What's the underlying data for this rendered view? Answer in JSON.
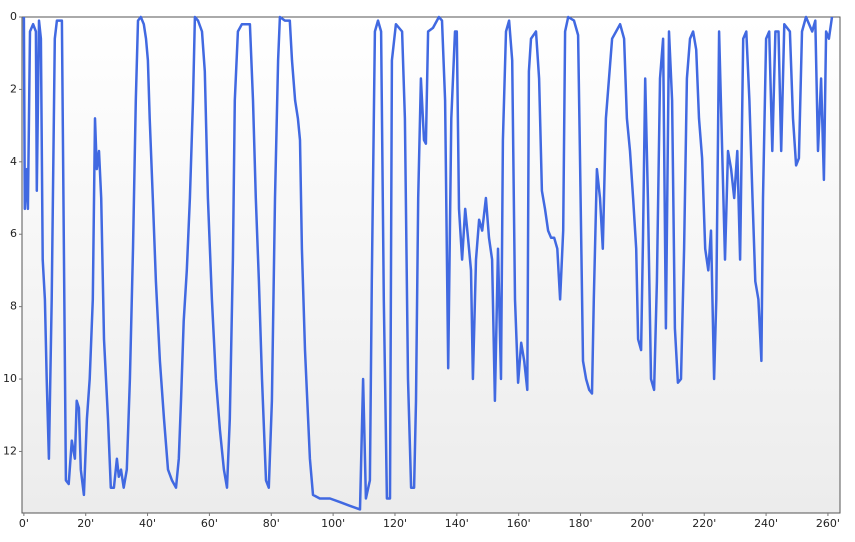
{
  "chart_data": {
    "type": "line",
    "color": "#4169e1",
    "x": [
      0,
      0.3,
      1,
      1.3,
      2,
      3,
      3.9,
      4.2,
      4.9,
      5.5,
      6.1,
      6.8,
      7.4,
      8.1,
      9,
      10,
      10.7,
      12.3,
      13.6,
      14.5,
      15.5,
      16.5,
      17.1,
      17.8,
      18.4,
      19.4,
      20.4,
      21.3,
      22.3,
      23,
      23.6,
      24.3,
      25,
      25.9,
      27.2,
      28.1,
      29.1,
      30.1,
      30.7,
      31.4,
      32.3,
      33.3,
      34.3,
      35.3,
      36.2,
      36.9,
      37.8,
      38.8,
      39.5,
      40.1,
      40.7,
      41.7,
      42.7,
      44,
      45.3,
      46.6,
      47.9,
      49.2,
      50.1,
      50.8,
      51.7,
      52.7,
      53.7,
      54.7,
      55.3,
      56.3,
      57.6,
      58.5,
      59.5,
      60.8,
      62.1,
      63.4,
      64.7,
      65.7,
      66.6,
      67.6,
      68.2,
      69.2,
      70.5,
      73.1,
      74.1,
      75,
      76,
      77,
      78.3,
      79.2,
      80.2,
      81.2,
      82.2,
      82.8,
      84.4,
      86,
      86.7,
      87.7,
      88.6,
      89.3,
      89.9,
      90.9,
      92.5,
      93.5,
      95.7,
      99,
      102.2,
      105.4,
      108.7,
      109.7,
      110.6,
      111.9,
      112.5,
      113.5,
      114.5,
      115.5,
      116.4,
      117.4,
      118.4,
      119,
      120.3,
      122.3,
      123.2,
      124.2,
      125.2,
      126.2,
      126.8,
      127.5,
      128.4,
      129.4,
      130,
      130.7,
      132.3,
      134.2,
      135.2,
      136.2,
      137.2,
      138.2,
      139.4,
      140,
      140.7,
      141.7,
      142.7,
      143.6,
      144.6,
      145.2,
      146.2,
      147.2,
      148.2,
      149.4,
      150.4,
      151.4,
      152.3,
      153.3,
      154.3,
      154.9,
      155.9,
      156.9,
      157.9,
      158.8,
      159.8,
      160.8,
      161.8,
      162.8,
      163.3,
      164,
      165.6,
      166.6,
      167.5,
      168.5,
      169.5,
      170.5,
      171.5,
      172.5,
      173.4,
      174.4,
      175,
      176,
      177.9,
      179.2,
      179.8,
      180.8,
      181.8,
      182.8,
      183.7,
      184.3,
      185.3,
      186.3,
      187.2,
      188.2,
      189.2,
      190.2,
      191.5,
      192.8,
      194.1,
      195,
      196,
      197,
      198,
      198.6,
      199.6,
      200.2,
      200.9,
      201.8,
      202.8,
      203.8,
      204.7,
      205.7,
      206.7,
      207.6,
      208.6,
      209.6,
      210.5,
      211.5,
      212.5,
      213.5,
      214.4,
      215.4,
      216.4,
      217.4,
      218.3,
      219.3,
      220.3,
      221.3,
      222.2,
      223.2,
      223.9,
      224.8,
      225.7,
      226.7,
      227.7,
      228.7,
      229.7,
      230.7,
      231.6,
      232.6,
      233.6,
      234.6,
      235.6,
      236.5,
      237.5,
      238.5,
      239,
      240,
      241,
      242,
      243,
      244,
      244.9,
      245.9,
      247.7,
      248.7,
      249.7,
      250.6,
      251.6,
      252.9,
      254.9,
      255.9,
      256.8,
      257.8,
      258.7,
      259.4,
      260.3,
      261.3
    ],
    "values": [
      0,
      5.3,
      4.2,
      5.3,
      0.4,
      0.2,
      0.4,
      4.8,
      0.1,
      0.6,
      6.7,
      7.8,
      10,
      12.2,
      7.8,
      0.6,
      0.1,
      0.1,
      12.8,
      12.9,
      11.7,
      12.2,
      10.6,
      10.8,
      12.5,
      13.2,
      11.1,
      10,
      7.8,
      2.8,
      4.2,
      3.7,
      5,
      8.9,
      11.1,
      13,
      13,
      12.2,
      12.7,
      12.5,
      13,
      12.5,
      10,
      6.4,
      2.3,
      0.1,
      0,
      0.2,
      0.6,
      1.2,
      2.8,
      5,
      7.3,
      9.5,
      11.1,
      12.5,
      12.8,
      13,
      12.2,
      10.6,
      8.4,
      7,
      5,
      2.3,
      0,
      0.1,
      0.4,
      1.5,
      5,
      7.8,
      10,
      11.4,
      12.5,
      13,
      11.1,
      6.7,
      2.3,
      0.4,
      0.2,
      0.2,
      2.3,
      5,
      7.3,
      10,
      12.8,
      13,
      10.6,
      5,
      1.2,
      0,
      0.1,
      0.1,
      1.2,
      2.3,
      2.8,
      3.4,
      6.4,
      9.2,
      12.2,
      13.2,
      13.3,
      13.3,
      13.4,
      13.5,
      13.6,
      10,
      13.3,
      12.8,
      7.3,
      0.4,
      0.1,
      0.4,
      7.8,
      13.3,
      13.3,
      1.2,
      0.2,
      0.4,
      2.8,
      10,
      13,
      13,
      10.6,
      5,
      1.7,
      3.4,
      3.5,
      0.4,
      0.3,
      0,
      0.1,
      2.3,
      9.7,
      2.8,
      0.4,
      0.4,
      5.3,
      6.7,
      5.3,
      6.1,
      7,
      10,
      6.7,
      5.6,
      5.9,
      5,
      6.1,
      6.7,
      10.6,
      6.4,
      10,
      3.4,
      0.4,
      0.1,
      1.2,
      7.8,
      10.1,
      9,
      9.5,
      10.3,
      1.5,
      0.6,
      0.4,
      1.7,
      4.8,
      5.3,
      5.9,
      6.1,
      6.1,
      6.4,
      7.8,
      5.9,
      0.4,
      0,
      0.1,
      0.5,
      3.7,
      9.5,
      10,
      10.3,
      10.4,
      7.8,
      4.2,
      5,
      6.4,
      2.8,
      1.7,
      0.6,
      0.4,
      0.2,
      0.6,
      2.8,
      3.7,
      5,
      6.4,
      8.9,
      9.2,
      6.1,
      1.7,
      5,
      10,
      10.3,
      7.3,
      1.7,
      0.6,
      8.6,
      0.4,
      2.3,
      8.6,
      10.1,
      10,
      6.4,
      1.7,
      0.6,
      0.4,
      0.9,
      2.8,
      3.9,
      6.4,
      7,
      5.9,
      10,
      7.8,
      0.4,
      3.4,
      6.7,
      3.7,
      4.2,
      5,
      3.7,
      6.7,
      0.6,
      0.4,
      2.3,
      5,
      7.3,
      7.8,
      9.5,
      5,
      0.6,
      0.4,
      3.7,
      0.4,
      0.4,
      3.7,
      0.2,
      0.4,
      2.8,
      4.1,
      3.9,
      0.4,
      0,
      0.4,
      0.1,
      3.7,
      1.7,
      4.5,
      0.4,
      0.6,
      0
    ],
    "xlim": [
      -0.6,
      263.9
    ],
    "ylim": [
      0,
      13.7
    ],
    "y_reversed": true,
    "xticks": [
      {
        "value": 0,
        "label": "0'"
      },
      {
        "value": 20,
        "label": "20'"
      },
      {
        "value": 40,
        "label": "40'"
      },
      {
        "value": 60,
        "label": "60'"
      },
      {
        "value": 80,
        "label": "80'"
      },
      {
        "value": 100,
        "label": "100'"
      },
      {
        "value": 120,
        "label": "120'"
      },
      {
        "value": 140,
        "label": "140'"
      },
      {
        "value": 160,
        "label": "160'"
      },
      {
        "value": 180,
        "label": "180'"
      },
      {
        "value": 200,
        "label": "200'"
      },
      {
        "value": 220,
        "label": "220'"
      },
      {
        "value": 240,
        "label": "240'"
      },
      {
        "value": 260,
        "label": "260'"
      }
    ],
    "yticks": [
      0,
      2,
      4,
      6,
      8,
      10,
      12
    ]
  }
}
